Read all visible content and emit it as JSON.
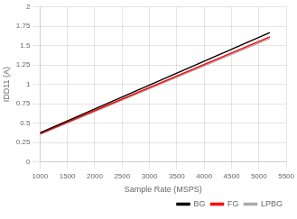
{
  "chart_data": {
    "type": "line",
    "x_label": "Sample Rate (MSPS)",
    "y_label": "IDD11 (A)",
    "x": [
      1000,
      5200
    ],
    "series": [
      {
        "name": "BG",
        "color": "#000000",
        "values": [
          0.375,
          1.67
        ]
      },
      {
        "name": "FG",
        "color": "#ff0000",
        "values": [
          0.365,
          1.615
        ]
      },
      {
        "name": "LPBG",
        "color": "#aaaaaa",
        "values": [
          0.355,
          1.595
        ]
      }
    ],
    "xlim": [
      1000,
      5500
    ],
    "ylim": [
      0,
      2
    ],
    "xticks": [
      1000,
      1500,
      2000,
      2500,
      3000,
      3500,
      4000,
      4500,
      5000,
      5500
    ],
    "yticks": [
      0,
      0.25,
      0.5,
      0.75,
      1,
      1.25,
      1.5,
      1.75,
      2
    ],
    "grid": true,
    "legend": "lower right"
  }
}
